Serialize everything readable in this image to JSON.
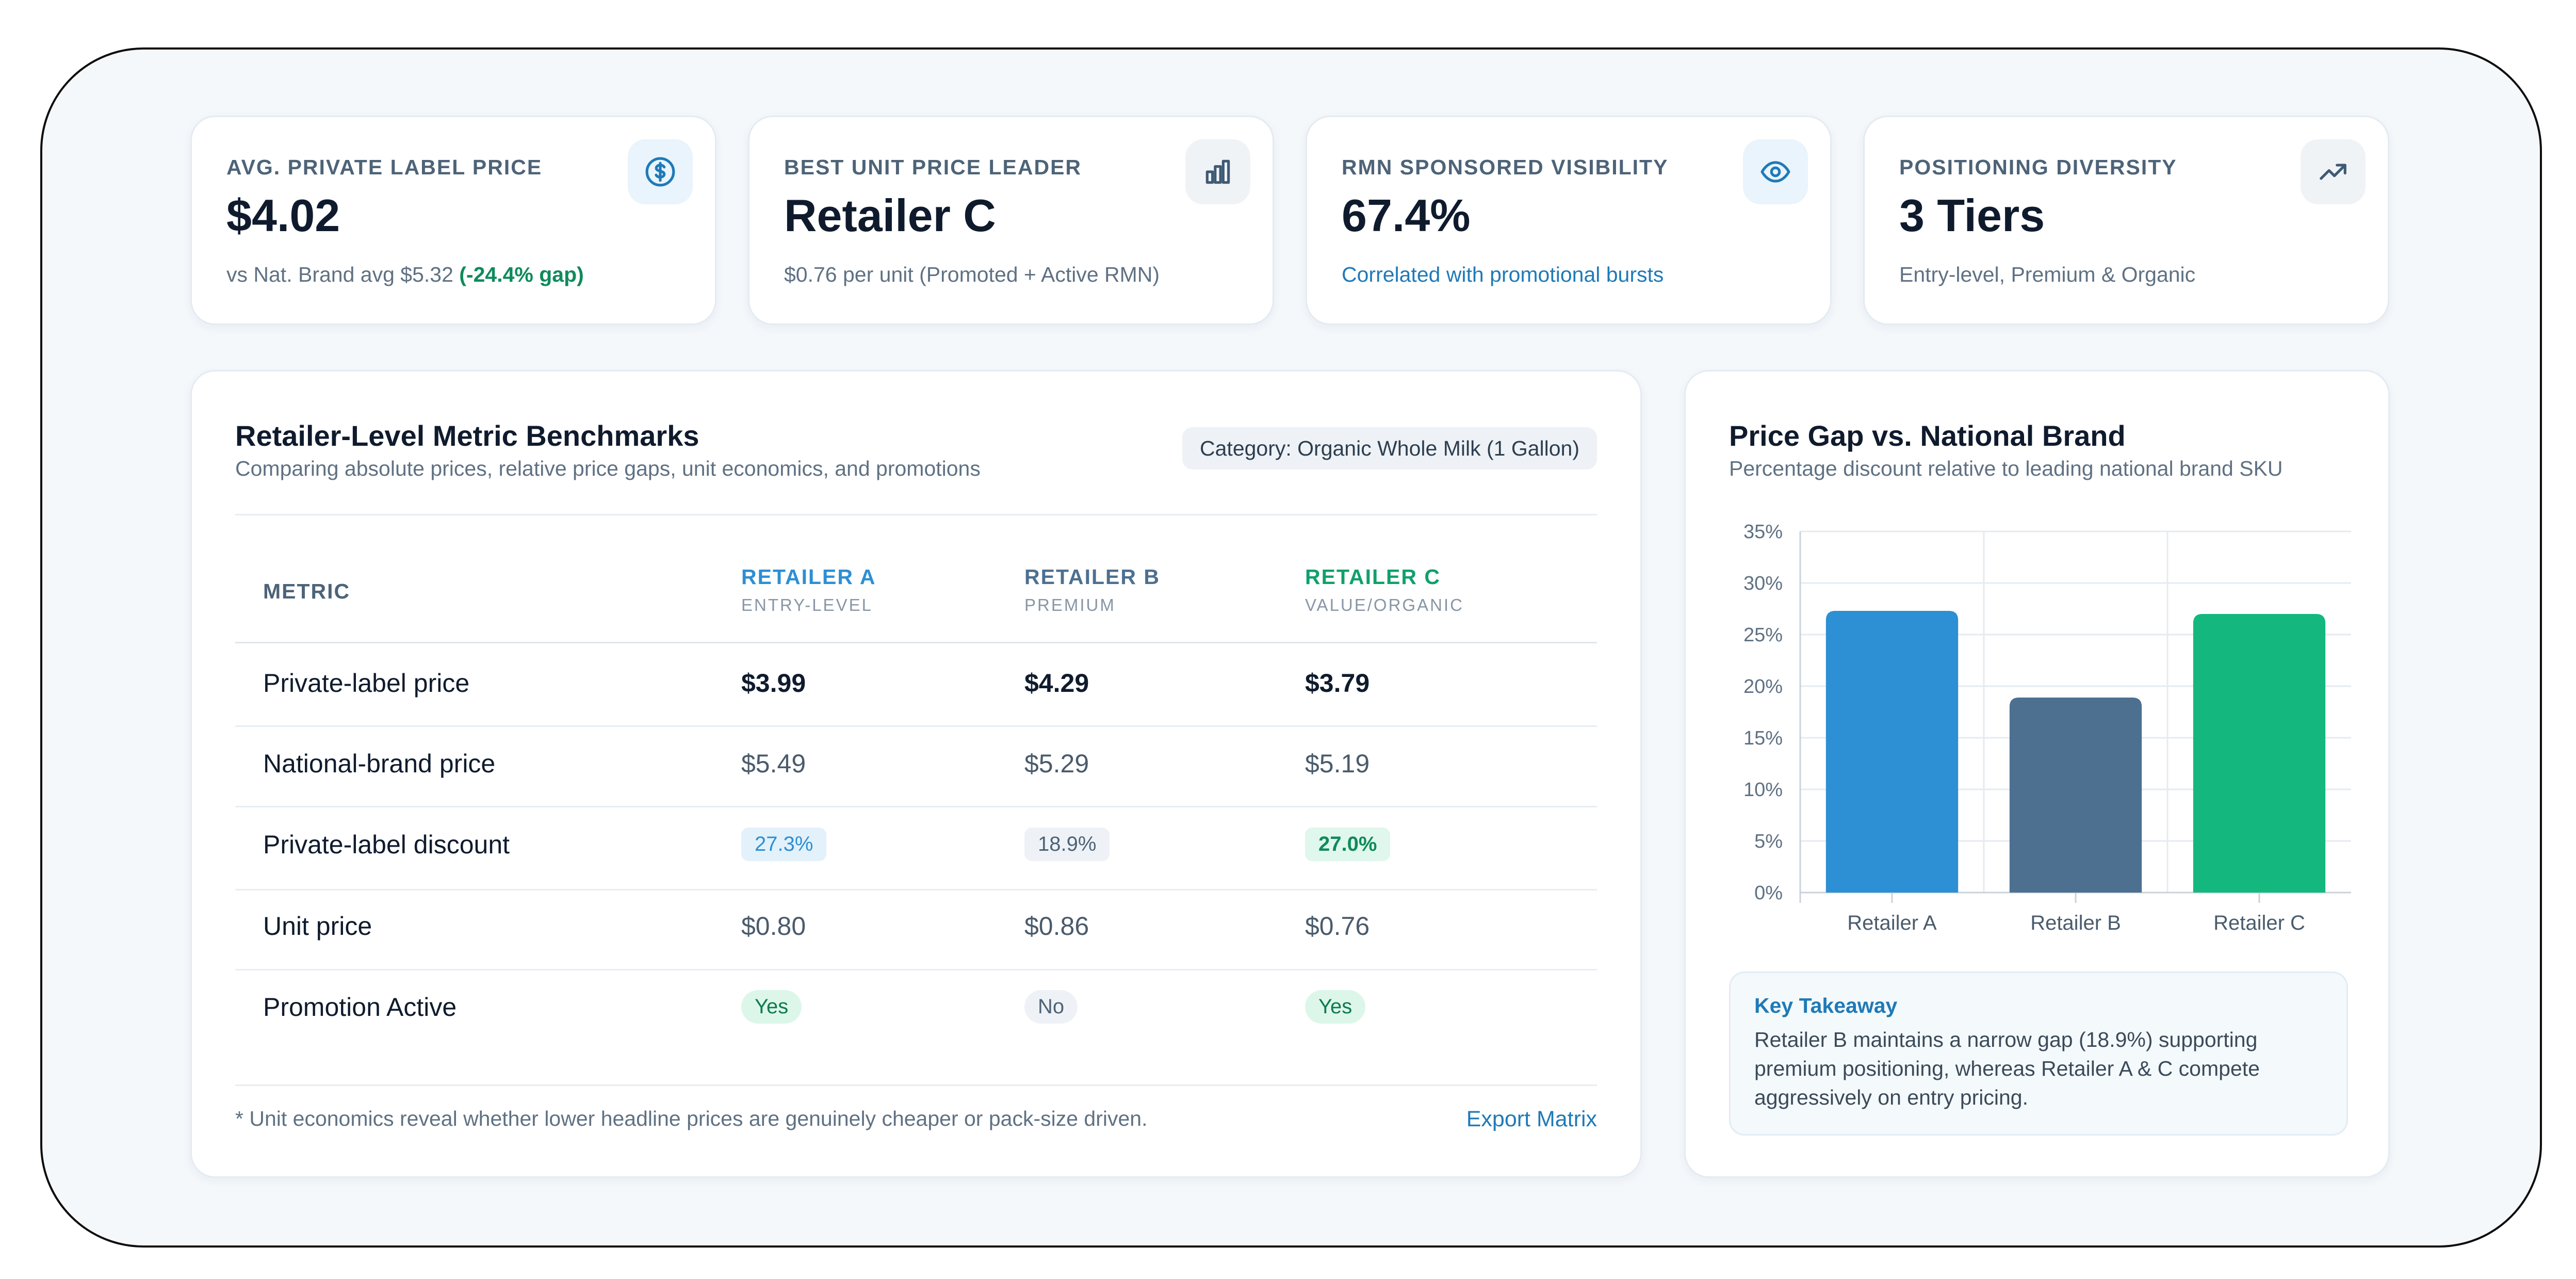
{
  "kpis": [
    {
      "label": "AVG. PRIVATE LABEL PRICE",
      "value": "$4.02",
      "sub": "vs Nat. Brand avg $5.32",
      "sub_highlight": "(-24.4% gap)",
      "icon": "dollar-icon"
    },
    {
      "label": "BEST UNIT PRICE LEADER",
      "value": "Retailer C",
      "sub": "$0.76 per unit (Promoted + Active RMN)",
      "icon": "bar-chart-icon"
    },
    {
      "label": "RMN SPONSORED VISIBILITY",
      "value": "67.4%",
      "sub": "Correlated with promotional bursts",
      "icon": "eye-icon"
    },
    {
      "label": "POSITIONING DIVERSITY",
      "value": "3 Tiers",
      "sub": "Entry-level, Premium & Organic",
      "icon": "trending-up-icon"
    }
  ],
  "table": {
    "title": "Retailer-Level Metric Benchmarks",
    "subtitle": "Comparing absolute prices, relative price gaps, unit economics, and promotions",
    "category": "Category: Organic Whole Milk (1 Gallon)",
    "metric_header": "METRIC",
    "columns": [
      {
        "name": "RETAILER A",
        "tier": "ENTRY-LEVEL",
        "color": "#2d8fd4"
      },
      {
        "name": "RETAILER B",
        "tier": "PREMIUM",
        "color": "#4d7090"
      },
      {
        "name": "RETAILER C",
        "tier": "VALUE/ORGANIC",
        "color": "#10a06b"
      }
    ],
    "rows": [
      {
        "label": "Private-label price",
        "values": [
          "$3.99",
          "$4.29",
          "$3.79"
        ]
      },
      {
        "label": "National-brand price",
        "values": [
          "$5.49",
          "$5.29",
          "$5.19"
        ]
      },
      {
        "label": "Private-label discount",
        "values": [
          "27.3%",
          "18.9%",
          "27.0%"
        ]
      },
      {
        "label": "Unit price",
        "values": [
          "$0.80",
          "$0.86",
          "$0.76"
        ]
      },
      {
        "label": "Promotion Active",
        "values": [
          "Yes",
          "No",
          "Yes"
        ]
      }
    ],
    "footnote": "* Unit economics reveal whether lower headline prices are genuinely cheaper or pack-size driven.",
    "export_label": "Export Matrix"
  },
  "chart": {
    "title": "Price Gap vs. National Brand",
    "subtitle": "Percentage discount relative to leading national brand SKU",
    "takeaway_title": "Key Takeaway",
    "takeaway_text": "Retailer B maintains a narrow gap (18.9%) supporting premium positioning, whereas Retailer A & C compete aggressively on entry pricing."
  },
  "chart_data": {
    "type": "bar",
    "title": "Price Gap vs. National Brand",
    "categories": [
      "Retailer A",
      "Retailer B",
      "Retailer C"
    ],
    "values": [
      27.3,
      18.9,
      27.0
    ],
    "colors": [
      "#2d8fd4",
      "#4d7090",
      "#14b87f"
    ],
    "ylim": [
      0,
      35
    ],
    "yticks": [
      0,
      5,
      10,
      15,
      20,
      25,
      30,
      35
    ],
    "ytick_labels": [
      "0%",
      "5%",
      "10%",
      "15%",
      "20%",
      "25%",
      "30%",
      "35%"
    ],
    "grid": true,
    "legend": "none"
  }
}
